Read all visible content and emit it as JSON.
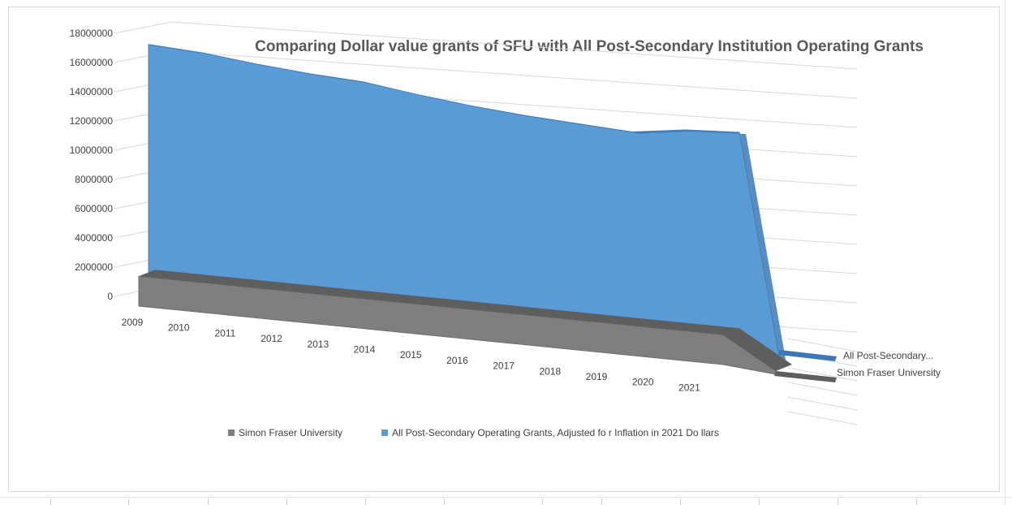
{
  "chart_data": {
    "type": "area",
    "title": "Comparing Dollar value grants of SFU with All Post-Secondary Institution Operating Grants",
    "categories": [
      "2009",
      "2010",
      "2011",
      "2012",
      "2013",
      "2014",
      "2015",
      "2016",
      "2017",
      "2018",
      "2019",
      "2020",
      "2021"
    ],
    "y_ticks": [
      "18000000",
      "16000000",
      "14000000",
      "12000000",
      "10000000",
      "8000000",
      "6000000",
      "4000000",
      "2000000",
      "0"
    ],
    "ylim": [
      0,
      18000000
    ],
    "grid": true,
    "legend_position": "bottom",
    "series": [
      {
        "name": "Simon Fraser University",
        "depth_label": "Simon Fraser University",
        "color": "#7f7f7f",
        "values": [
          600000,
          600000,
          600000,
          600000,
          600000,
          600000,
          600000,
          600000,
          600000,
          600000,
          600000,
          600000,
          0
        ]
      },
      {
        "name": "All Post-Secondary Operating Grants, Adjusted fo r Inflation in 2021 Do llars",
        "depth_label": "All Post-Secondary...",
        "color": "#5b9bd5",
        "values": [
          15900000,
          15800000,
          15500000,
          15300000,
          15200000,
          14800000,
          14500000,
          14300000,
          14200000,
          14100000,
          14700000,
          15000000,
          0
        ]
      }
    ]
  }
}
